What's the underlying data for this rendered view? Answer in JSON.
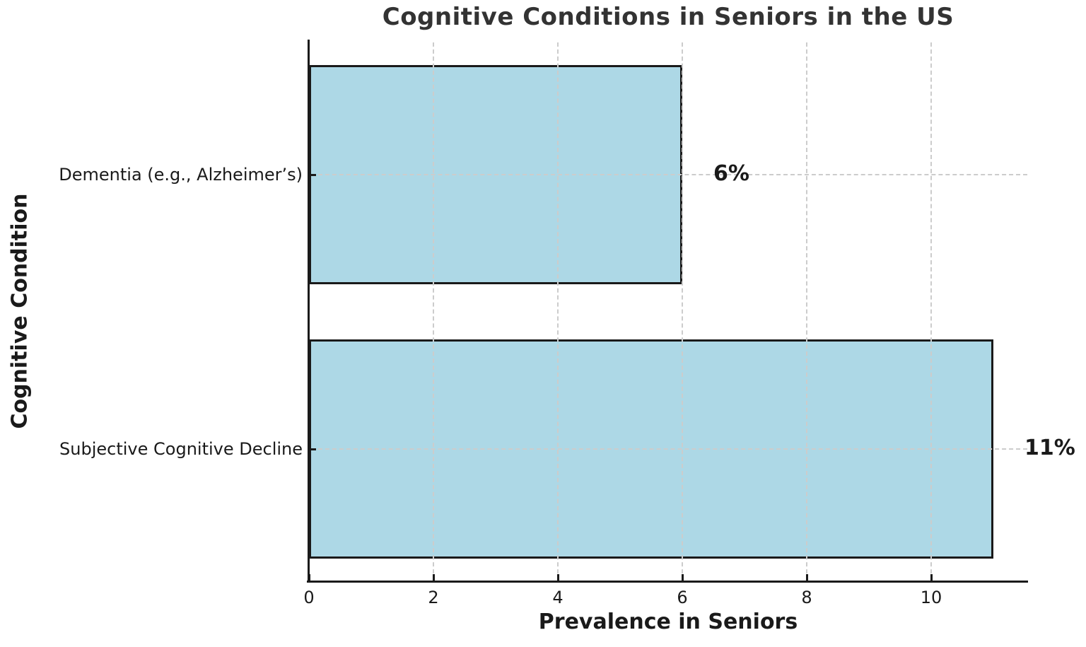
{
  "chart_data": {
    "type": "bar",
    "orientation": "horizontal",
    "title": "Cognitive Conditions in Seniors in the US",
    "xlabel": "Prevalence in Seniors",
    "ylabel": "Cognitive Condition",
    "categories": [
      "Dementia (e.g., Alzheimer’s)",
      "Subjective Cognitive Decline"
    ],
    "values": [
      6,
      11
    ],
    "value_labels": [
      "6%",
      "11%"
    ],
    "x_tick_values": [
      0,
      2,
      4,
      6,
      8,
      10
    ],
    "x_tick_labels": [
      "0",
      "2",
      "4",
      "6",
      "8",
      "10"
    ],
    "xlim": [
      0,
      11.55
    ],
    "grid": "dashed",
    "legend_position": "none",
    "colors": {
      "bar_fill": "#ADD8E6",
      "bar_edge": "#1a1a1a",
      "gridline": "#cccccc",
      "axis": "#1a1a1a",
      "title_text": "#333333",
      "label_text": "#1a1a1a",
      "background": "#ffffff"
    }
  }
}
